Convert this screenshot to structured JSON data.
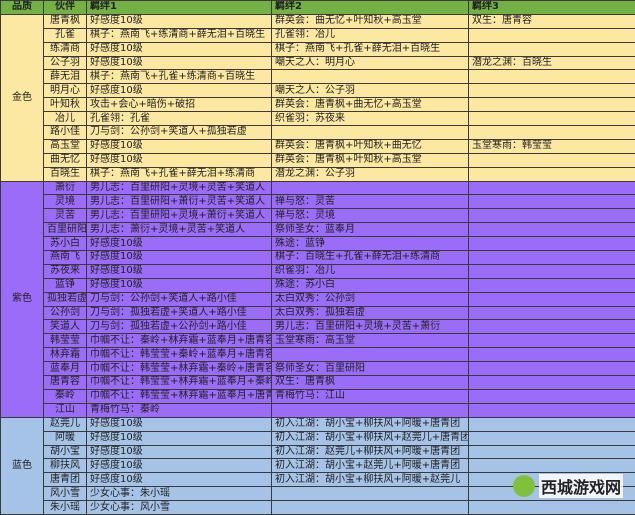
{
  "headers": [
    "品质",
    "伙伴",
    "羁绊1",
    "羁绊2",
    "羁绊3"
  ],
  "groups": [
    {
      "quality": "金色",
      "color": "#fde8a2",
      "cls": "gold",
      "rows": [
        [
          "唐青枫",
          "好感度10级",
          "群英会：曲无忆+叶知秋+高玉堂",
          "双生：唐青容"
        ],
        [
          "孔雀",
          "棋子：燕南飞+练清商+薛无泪+百晓生",
          "孔雀翎：冶儿",
          ""
        ],
        [
          "练清商",
          "好感度10级",
          "棋子：燕南飞+孔雀+薛无泪+百晓生",
          ""
        ],
        [
          "公子羽",
          "好感度10级",
          "嘲天之人：明月心",
          "潜龙之渊：百晓生"
        ],
        [
          "薛无泪",
          "棋子：燕南飞+孔雀+练清商+百晓生",
          "",
          ""
        ],
        [
          "明月心",
          "好感度10级",
          "嘲天之人：公子羽",
          ""
        ],
        [
          "叶知秋",
          "攻击+会心+暗伤+破招",
          "群英会：唐青枫+曲无忆+高玉堂",
          ""
        ],
        [
          "冶儿",
          "孔雀翎：孔雀",
          "织雀羽：苏夜来",
          ""
        ],
        [
          "路小佳",
          "刀与剑：公孙剑+笑道人+孤独若虚",
          "",
          ""
        ],
        [
          "高玉堂",
          "好感度10级",
          "群英会：唐青枫+叶知秋+曲无忆",
          "玉堂寒雨：韩莹莹"
        ],
        [
          "曲无忆",
          "好感度10级",
          "群英会：唐青枫+叶知秋+高玉堂",
          ""
        ],
        [
          "百晓生",
          "棋子：燕南飞+孔雀+薛无泪+练清商",
          "潜龙之渊：公子羽",
          ""
        ]
      ]
    },
    {
      "quality": "紫色",
      "color": "#9a6cf7",
      "cls": "purple",
      "rows": [
        [
          "萧衍",
          "男儿志：百里研阳+灵境+灵苦+笑道人",
          "",
          ""
        ],
        [
          "灵境",
          "男儿志：百里研阳+萧衍+灵苦+笑道人",
          "禅与怒：灵苦",
          ""
        ],
        [
          "灵苦",
          "男儿志：百里研阳+灵境+萧衍+笑道人",
          "禅与怒：灵境",
          ""
        ],
        [
          "百里研阳",
          "男儿志：萧衍+灵境+灵苦+笑道人",
          "祭师圣女：蓝奉月",
          ""
        ],
        [
          "苏小白",
          "好感度10级",
          "殊途：蓝铮",
          ""
        ],
        [
          "燕南飞",
          "好感度10级",
          "棋子：百晓生+孔雀+薛无泪+练清商",
          ""
        ],
        [
          "苏夜来",
          "好感度10级",
          "织雀羽：冶儿",
          ""
        ],
        [
          "蓝铮",
          "好感度10级",
          "殊途：苏小白",
          ""
        ],
        [
          "孤独若虚",
          "刀与剑：公孙剑+笑道人+路小佳",
          "太白双秀：公孙剑",
          ""
        ],
        [
          "公孙剑",
          "刀与剑：孤独若虚+笑道人+路小佳",
          "太白双秀：孤独若虚",
          ""
        ],
        [
          "笑道人",
          "刀与剑：孤独若虚+公孙剑+路小佳",
          "男儿志：百里研阳+灵境+灵苦+萧衍",
          ""
        ],
        [
          "韩莹莹",
          "巾帼不让：秦岭+林弃霜+蓝奉月+唐青容",
          "玉堂寒雨：高玉堂",
          ""
        ],
        [
          "林弃霜",
          "巾帼不让：韩莹莹+秦岭+蓝奉月+唐青容",
          "",
          ""
        ],
        [
          "蓝奉月",
          "巾帼不让：韩莹莹+林弃霜+秦岭+唐青容",
          "祭师圣女：百里研阳",
          ""
        ],
        [
          "唐青容",
          "巾帼不让：韩莹莹+林弃霜+蓝奉月+秦岭",
          "双生：唐青枫",
          ""
        ],
        [
          "秦岭",
          "巾帼不让：韩莹莹+林弃霜+蓝奉月+唐青容",
          "青梅竹马：江山",
          ""
        ],
        [
          "江山",
          "青梅竹马：秦岭",
          "",
          ""
        ]
      ]
    },
    {
      "quality": "蓝色",
      "color": "#a5c3e6",
      "cls": "blue",
      "rows": [
        [
          "赵莞儿",
          "好感度10级",
          "初入江湖：胡小宝+柳扶风+阿暖+唐青团",
          ""
        ],
        [
          "阿暖",
          "好感度10级",
          "初入江湖：胡小宝+柳扶风+赵莞儿+唐青团",
          ""
        ],
        [
          "胡小宝",
          "好感度10级",
          "初入江湖：赵莞儿+柳扶风+阿暖+唐青团",
          ""
        ],
        [
          "柳扶风",
          "好感度10级",
          "初入江湖：胡小宝+赵莞儿+阿暖+唐青团",
          ""
        ],
        [
          "唐青团",
          "好感度10级",
          "初入江湖：胡小宝+柳扶风+阿暖+赵莞儿",
          ""
        ],
        [
          "风小雪",
          "少女心事：朱小瑶",
          "",
          ""
        ],
        [
          "朱小瑶",
          "少女心事：风小雪",
          "",
          ""
        ]
      ]
    }
  ],
  "header_color": "#73b144",
  "watermark": {
    "text": "西城游戏网",
    "sub": "XICHENGYOUXIWANG"
  }
}
